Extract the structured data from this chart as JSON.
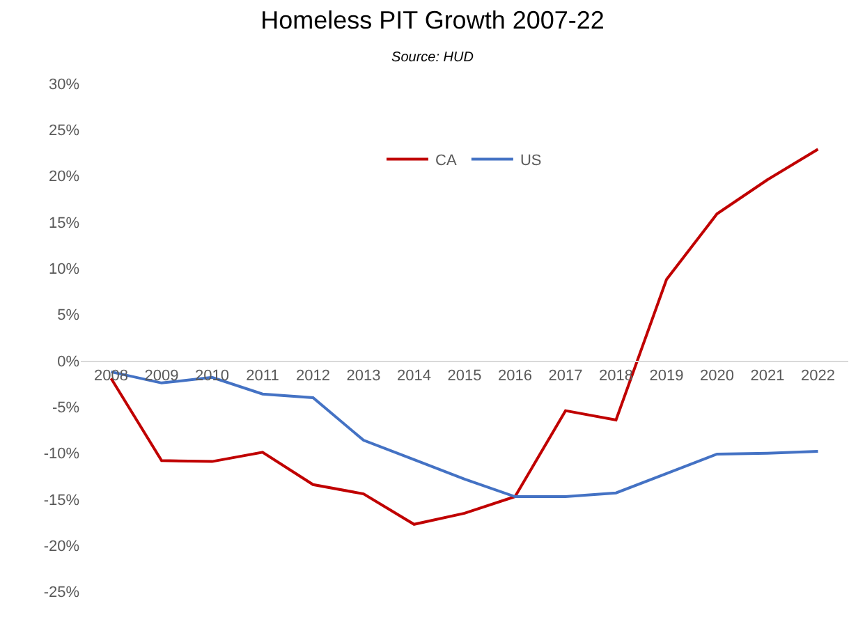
{
  "chart_data": {
    "type": "line",
    "title": "Homeless PIT Growth 2007-22",
    "subtitle": "Source: HUD",
    "categories": [
      "2008",
      "2009",
      "2010",
      "2011",
      "2012",
      "2013",
      "2014",
      "2015",
      "2016",
      "2017",
      "2018",
      "2019",
      "2020",
      "2021",
      "2022"
    ],
    "series": [
      {
        "name": "CA",
        "color": "#c00000",
        "values": [
          -1.9,
          -10.8,
          -10.9,
          -9.9,
          -13.4,
          -14.4,
          -17.7,
          -16.5,
          -14.7,
          -5.4,
          -6.4,
          8.8,
          15.9,
          19.6,
          22.9
        ]
      },
      {
        "name": "US",
        "color": "#4472c4",
        "values": [
          -1.2,
          -2.4,
          -1.8,
          -3.6,
          -4.0,
          -8.6,
          -10.7,
          -12.8,
          -14.7,
          -14.7,
          -14.3,
          -12.2,
          -10.1,
          -10.0,
          -9.8
        ]
      }
    ],
    "ylim": [
      -30,
      30
    ],
    "yticks": [
      {
        "value": 30,
        "label": "30%"
      },
      {
        "value": 25,
        "label": "25%"
      },
      {
        "value": 20,
        "label": "20%"
      },
      {
        "value": 15,
        "label": "15%"
      },
      {
        "value": 10,
        "label": "10%"
      },
      {
        "value": 5,
        "label": "5%"
      },
      {
        "value": 0,
        "label": "0%"
      },
      {
        "value": -5,
        "label": "-5%"
      },
      {
        "value": -10,
        "label": "-10%"
      },
      {
        "value": -15,
        "label": "-15%"
      },
      {
        "value": -20,
        "label": "-20%"
      },
      {
        "value": -25,
        "label": "-25%"
      }
    ],
    "grid": false,
    "legend": "top",
    "marker": "none",
    "line_style": "solid"
  }
}
